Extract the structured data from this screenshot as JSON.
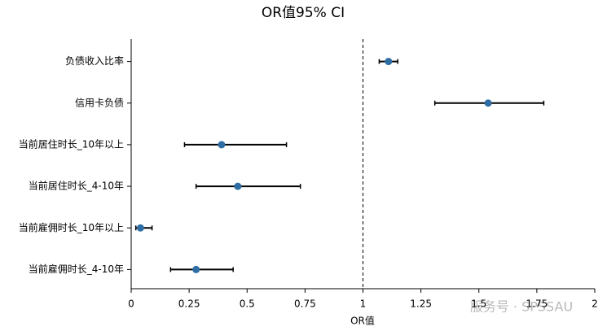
{
  "chart_data": {
    "type": "forest",
    "title": "OR值95% CI",
    "x_label": "OR值",
    "categories": [
      "负债收入比率",
      "信用卡负债",
      "当前居住时长_10年以上",
      "当前居住时长_4-10年",
      "当前雇佣时长_10年以上",
      "当前雇佣时长_4-10年"
    ],
    "values": [
      1.11,
      1.54,
      0.39,
      0.46,
      0.04,
      0.28
    ],
    "lower": [
      1.07,
      1.31,
      0.23,
      0.28,
      0.02,
      0.17
    ],
    "upper": [
      1.15,
      1.78,
      0.67,
      0.73,
      0.09,
      0.44
    ],
    "color": "#2e6da4",
    "error_color": "#000000",
    "reference_line": 1,
    "xlim": [
      0,
      2
    ],
    "xticks": [
      0,
      0.25,
      0.5,
      0.75,
      1,
      1.25,
      1.5,
      1.75,
      2
    ],
    "watermark": "服务号 · SPSSAU"
  }
}
